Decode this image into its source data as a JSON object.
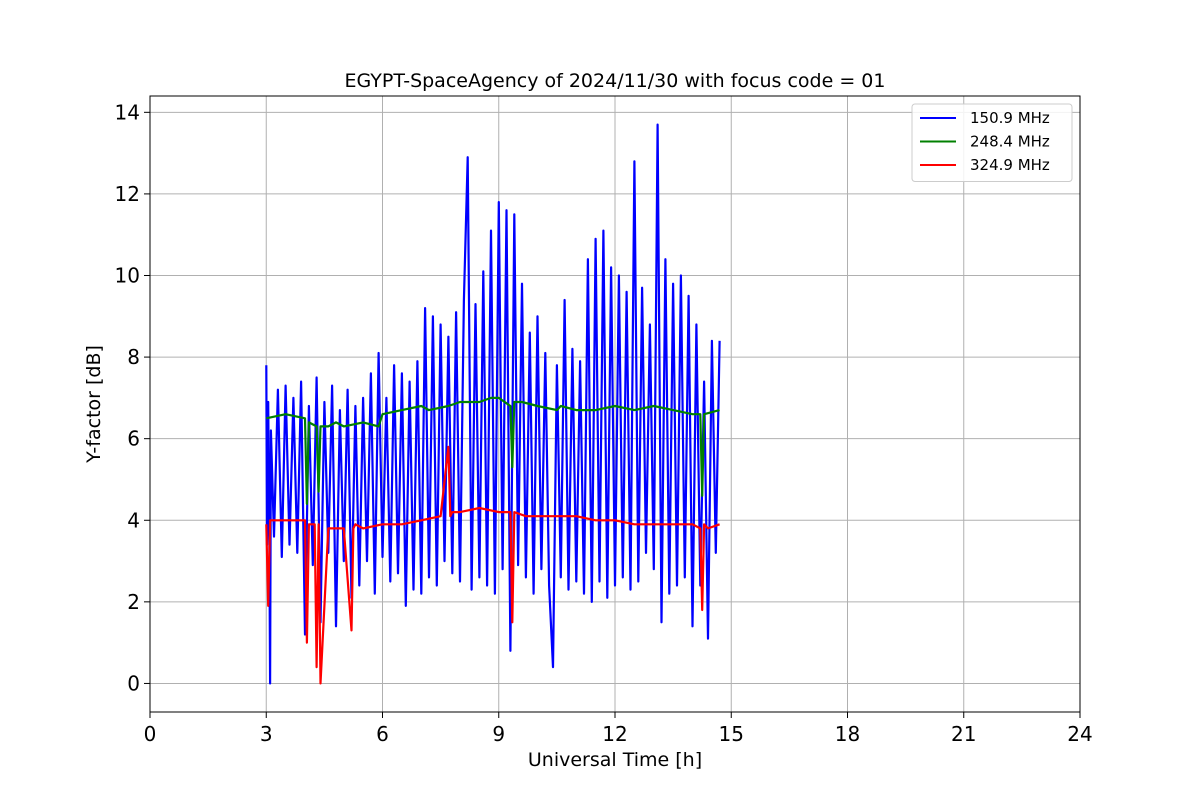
{
  "chart_data": {
    "type": "line",
    "title": "EGYPT-SpaceAgency of 2024/11/30 with focus code = 01",
    "xlabel": "Universal Time [h]",
    "ylabel": "Y-factor [dB]",
    "xlim": [
      0,
      24
    ],
    "ylim": [
      -0.7,
      14.4
    ],
    "xticks": [
      0,
      3,
      6,
      9,
      12,
      15,
      18,
      21,
      24
    ],
    "yticks": [
      0,
      2,
      4,
      6,
      8,
      10,
      12,
      14
    ],
    "grid": true,
    "legend_position": "top-right",
    "series": [
      {
        "name": "150.9 MHz",
        "color": "#0000ff",
        "x": [
          3.0,
          3.02,
          3.05,
          3.08,
          3.1,
          3.12,
          3.2,
          3.3,
          3.4,
          3.5,
          3.6,
          3.7,
          3.8,
          3.9,
          4.0,
          4.1,
          4.2,
          4.3,
          4.4,
          4.5,
          4.6,
          4.7,
          4.8,
          4.9,
          5.0,
          5.1,
          5.2,
          5.3,
          5.4,
          5.5,
          5.6,
          5.7,
          5.8,
          5.9,
          6.0,
          6.1,
          6.2,
          6.3,
          6.4,
          6.5,
          6.6,
          6.7,
          6.8,
          6.9,
          7.0,
          7.1,
          7.2,
          7.3,
          7.4,
          7.5,
          7.6,
          7.7,
          7.8,
          7.9,
          8.0,
          8.1,
          8.2,
          8.3,
          8.4,
          8.5,
          8.6,
          8.7,
          8.8,
          8.9,
          9.0,
          9.1,
          9.2,
          9.3,
          9.4,
          9.5,
          9.6,
          9.7,
          9.8,
          9.9,
          10.0,
          10.1,
          10.2,
          10.3,
          10.4,
          10.5,
          10.6,
          10.7,
          10.8,
          10.9,
          11.0,
          11.1,
          11.2,
          11.3,
          11.4,
          11.5,
          11.6,
          11.7,
          11.8,
          11.9,
          12.0,
          12.1,
          12.2,
          12.3,
          12.4,
          12.5,
          12.6,
          12.7,
          12.8,
          12.9,
          13.0,
          13.1,
          13.2,
          13.3,
          13.4,
          13.5,
          13.6,
          13.7,
          13.8,
          13.9,
          14.0,
          14.1,
          14.2,
          14.3,
          14.4,
          14.5,
          14.6,
          14.7
        ],
        "y": [
          7.8,
          3.4,
          6.9,
          3.3,
          0.0,
          6.2,
          3.6,
          7.2,
          3.1,
          7.3,
          3.4,
          7.0,
          3.2,
          7.4,
          1.2,
          6.8,
          2.9,
          7.5,
          1.5,
          6.9,
          3.2,
          7.3,
          1.4,
          6.7,
          3.0,
          7.2,
          2.1,
          6.8,
          2.4,
          7.0,
          3.0,
          7.6,
          2.2,
          8.1,
          3.1,
          7.0,
          2.5,
          7.8,
          2.7,
          7.6,
          1.9,
          7.4,
          2.3,
          7.9,
          2.2,
          9.2,
          2.6,
          9.0,
          2.4,
          8.8,
          3.0,
          8.5,
          2.7,
          9.1,
          2.5,
          9.4,
          12.9,
          2.3,
          9.3,
          2.6,
          10.1,
          2.4,
          11.1,
          2.2,
          11.8,
          2.8,
          11.6,
          0.8,
          11.5,
          2.9,
          9.8,
          2.6,
          8.6,
          2.2,
          9.0,
          2.8,
          8.1,
          2.4,
          0.4,
          7.8,
          2.6,
          9.4,
          2.3,
          8.2,
          2.5,
          7.9,
          2.2,
          10.4,
          2.0,
          10.9,
          2.5,
          11.1,
          2.1,
          10.2,
          2.4,
          10.0,
          2.6,
          9.6,
          2.3,
          12.8,
          2.5,
          9.7,
          3.2,
          8.8,
          2.8,
          13.7,
          1.5,
          10.4,
          2.2,
          9.8,
          2.4,
          10.0,
          2.6,
          9.5,
          1.4,
          8.8,
          2.4,
          7.4,
          1.1,
          8.4,
          3.2,
          8.4
        ]
      },
      {
        "name": "248.4 MHz",
        "color": "#008000",
        "x": [
          3.0,
          3.5,
          4.0,
          4.05,
          4.1,
          4.3,
          4.35,
          4.4,
          4.6,
          4.8,
          5.0,
          5.5,
          5.9,
          6.0,
          6.5,
          7.0,
          7.2,
          7.7,
          8.0,
          8.5,
          8.8,
          9.0,
          9.3,
          9.35,
          9.4,
          9.6,
          10.0,
          10.5,
          10.6,
          11.0,
          11.5,
          12.0,
          12.5,
          13.0,
          13.5,
          14.0,
          14.2,
          14.25,
          14.3,
          14.7
        ],
        "y": [
          6.5,
          6.6,
          6.5,
          4.4,
          6.4,
          6.3,
          4.7,
          6.3,
          6.3,
          6.4,
          6.3,
          6.4,
          6.3,
          6.6,
          6.7,
          6.8,
          6.7,
          6.8,
          6.9,
          6.9,
          7.0,
          7.0,
          6.8,
          5.3,
          6.9,
          6.9,
          6.8,
          6.7,
          6.8,
          6.7,
          6.7,
          6.8,
          6.7,
          6.8,
          6.7,
          6.6,
          6.6,
          4.6,
          6.6,
          6.7
        ]
      },
      {
        "name": "324.9 MHz",
        "color": "#ff0000",
        "x": [
          3.0,
          3.05,
          3.1,
          3.15,
          3.5,
          4.0,
          4.05,
          4.1,
          4.25,
          4.3,
          4.35,
          4.4,
          4.6,
          5.0,
          5.2,
          5.25,
          5.3,
          5.5,
          6.0,
          6.5,
          7.0,
          7.5,
          7.7,
          7.75,
          7.8,
          8.0,
          8.5,
          9.0,
          9.3,
          9.35,
          9.4,
          9.7,
          10.0,
          10.5,
          11.0,
          11.5,
          12.0,
          12.5,
          13.0,
          13.5,
          14.0,
          14.2,
          14.25,
          14.3,
          14.4,
          14.7
        ],
        "y": [
          3.9,
          1.9,
          4.0,
          4.0,
          4.0,
          4.0,
          1.0,
          3.9,
          3.9,
          0.4,
          3.9,
          0.0,
          3.8,
          3.8,
          1.3,
          3.8,
          3.9,
          3.8,
          3.9,
          3.9,
          4.0,
          4.1,
          5.8,
          4.1,
          4.2,
          4.2,
          4.3,
          4.2,
          4.2,
          1.5,
          4.2,
          4.1,
          4.1,
          4.1,
          4.1,
          4.0,
          4.0,
          3.9,
          3.9,
          3.9,
          3.9,
          3.8,
          1.8,
          3.9,
          3.8,
          3.9
        ]
      }
    ]
  }
}
